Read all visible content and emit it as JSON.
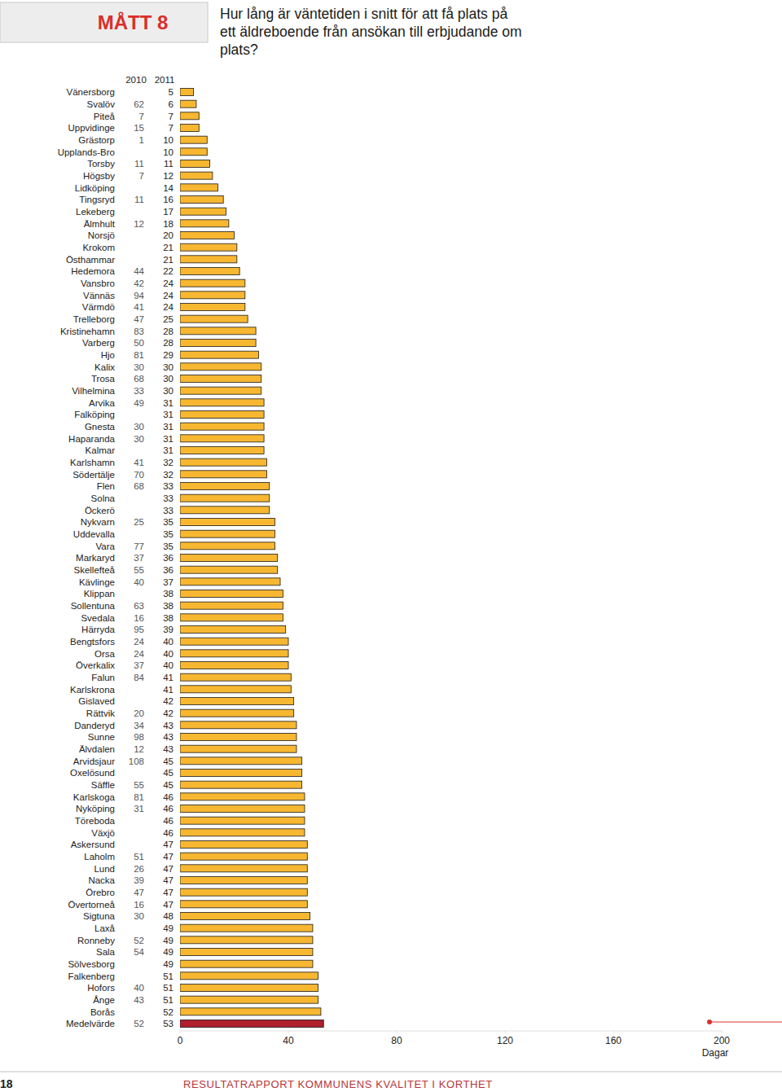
{
  "chart_data": {
    "type": "bar",
    "orientation": "horizontal",
    "subtitle": "MÅTT 8",
    "title": "Hur lång är väntetiden i snitt för att få plats på ett äldreboende från ansökan till erbjudande om plats?",
    "x_label": "Dagar",
    "annotations": [
      "18",
      "RESULTATRAPPORT KOMMUNENS KVALITET I KORTHET"
    ],
    "categories": [
      "Vänersborg",
      "Svalöv",
      "Piteå",
      "Uppvidinge",
      "Grästorp",
      "Upplands-Bro",
      "Torsby",
      "Högsby",
      "Lidköping",
      "Tingsryd",
      "Lekeberg",
      "Älmhult",
      "Norsjö",
      "Krokom",
      "Östhammar",
      "Hedemora",
      "Vansbro",
      "Vännäs",
      "Värmdö",
      "Trelleborg",
      "Kristinehamn",
      "Varberg",
      "Hjo",
      "Kalix",
      "Trosa",
      "Vilhelmina",
      "Arvika",
      "Falköping",
      "Gnesta",
      "Haparanda",
      "Kalmar",
      "Karlshamn",
      "Södertälje",
      "Flen",
      "Solna",
      "Öckerö",
      "Nykvarn",
      "Uddevalla",
      "Vara",
      "Markaryd",
      "Skellefteå",
      "Kävlinge",
      "Klippan",
      "Sollentuna",
      "Svedala",
      "Härryda",
      "Bengtsfors",
      "Orsa",
      "Överkalix",
      "Falun",
      "Karlskrona",
      "Gislaved",
      "Rättvik",
      "Danderyd",
      "Sunne",
      "Älvdalen",
      "Arvidsjaur",
      "Oxelösund",
      "Säffle",
      "Karlskoga",
      "Nyköping",
      "Töreboda",
      "Växjö",
      "Askersund",
      "Laholm",
      "Lund",
      "Nacka",
      "Örebro",
      "Övertorneå",
      "Sigtuna",
      "Laxå",
      "Ronneby",
      "Sala",
      "Sölvesborg",
      "Falkenberg",
      "Hofors",
      "Ånge",
      "Borås",
      "Medelvärde"
    ],
    "series": [
      {
        "name": "2010",
        "type": "table",
        "values": [
          null,
          62,
          7,
          15,
          1,
          null,
          11,
          7,
          null,
          11,
          null,
          12,
          null,
          null,
          null,
          44,
          42,
          94,
          41,
          47,
          83,
          50,
          81,
          30,
          68,
          33,
          49,
          null,
          30,
          30,
          null,
          41,
          70,
          68,
          null,
          null,
          25,
          null,
          77,
          37,
          55,
          40,
          null,
          63,
          16,
          95,
          24,
          24,
          37,
          84,
          null,
          null,
          20,
          34,
          98,
          12,
          108,
          null,
          55,
          81,
          31,
          null,
          null,
          null,
          51,
          26,
          39,
          47,
          16,
          30,
          null,
          52,
          54,
          null,
          null,
          40,
          43,
          null,
          52
        ]
      },
      {
        "name": "2011",
        "type": "bar",
        "values": [
          5,
          6,
          7,
          7,
          10,
          10,
          11,
          12,
          14,
          16,
          17,
          18,
          20,
          21,
          21,
          22,
          24,
          24,
          24,
          25,
          28,
          28,
          29,
          30,
          30,
          30,
          31,
          31,
          31,
          31,
          31,
          32,
          32,
          33,
          33,
          33,
          35,
          35,
          35,
          36,
          36,
          37,
          38,
          38,
          38,
          39,
          40,
          40,
          40,
          41,
          41,
          42,
          42,
          43,
          43,
          43,
          45,
          45,
          45,
          46,
          46,
          46,
          46,
          47,
          47,
          47,
          47,
          47,
          47,
          48,
          49,
          49,
          49,
          49,
          51,
          51,
          51,
          52,
          53
        ],
        "colors": [
          "#f7b731",
          "#f7b731",
          "#f7b731",
          "#f7b731",
          "#f7b731",
          "#f7b731",
          "#f7b731",
          "#f7b731",
          "#f7b731",
          "#f7b731",
          "#f7b731",
          "#f7b731",
          "#f7b731",
          "#f7b731",
          "#f7b731",
          "#f7b731",
          "#f7b731",
          "#f7b731",
          "#f7b731",
          "#f7b731",
          "#f7b731",
          "#f7b731",
          "#f7b731",
          "#f7b731",
          "#f7b731",
          "#f7b731",
          "#f7b731",
          "#f7b731",
          "#f7b731",
          "#f7b731",
          "#f7b731",
          "#f7b731",
          "#f7b731",
          "#f7b731",
          "#f7b731",
          "#f7b731",
          "#f7b731",
          "#f7b731",
          "#f7b731",
          "#f7b731",
          "#f7b731",
          "#f7b731",
          "#f7b731",
          "#f7b731",
          "#f7b731",
          "#f7b731",
          "#f7b731",
          "#f7b731",
          "#f7b731",
          "#f7b731",
          "#f7b731",
          "#f7b731",
          "#f7b731",
          "#f7b731",
          "#f7b731",
          "#f7b731",
          "#f7b731",
          "#f7b731",
          "#f7b731",
          "#f7b731",
          "#f7b731",
          "#f7b731",
          "#f7b731",
          "#f7b731",
          "#f7b731",
          "#f7b731",
          "#f7b731",
          "#f7b731",
          "#f7b731",
          "#f7b731",
          "#f7b731",
          "#f7b731",
          "#f7b731",
          "#f7b731",
          "#f7b731",
          "#f7b731",
          "#f7b731",
          "#f7b731",
          "#b01f2e"
        ]
      }
    ],
    "data_labels": true,
    "grid": false,
    "xlim": [
      0,
      200
    ],
    "xticks": [
      0,
      40,
      80,
      120,
      160,
      200
    ]
  }
}
